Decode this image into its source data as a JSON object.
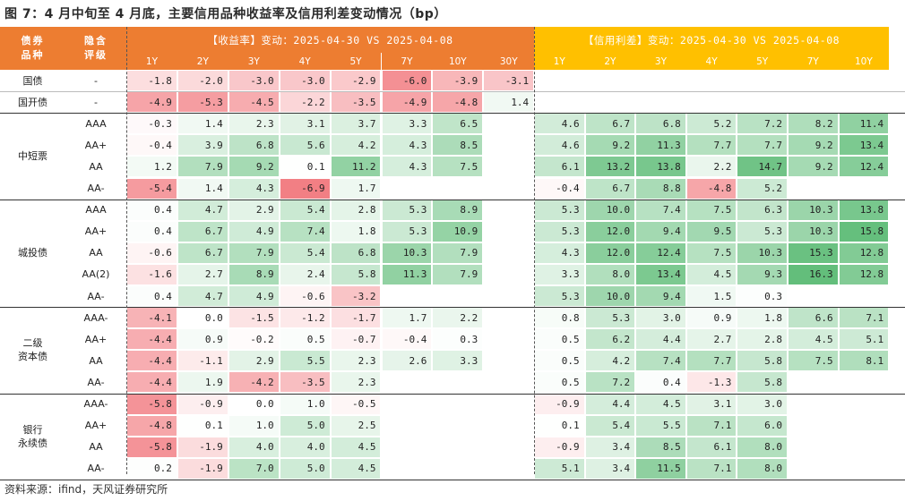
{
  "title": "图 7：4 月中旬至 4 月底，主要信用品种收益率及信用利差变动情况（bp）",
  "source": "资料来源：ifind，天风证券研究所",
  "colors": {
    "orange": "#ed7d31",
    "yellow": "#ffc000",
    "red_strong": "#f27f84",
    "green_strong": "#63be7b"
  },
  "header": {
    "col_bond": "债券\n品种",
    "col_rating": "隐含\n评级",
    "yield_title": "【收益率】变动：2025-04-30 VS 2025-04-08",
    "spread_title": "【信用利差】变动：2025-04-30 VS 2025-04-08",
    "yield_tenors": [
      "1Y",
      "2Y",
      "3Y",
      "4Y",
      "5Y",
      "7Y",
      "10Y",
      "30Y"
    ],
    "spread_tenors": [
      "1Y",
      "2Y",
      "3Y",
      "4Y",
      "5Y",
      "7Y",
      "10Y"
    ]
  },
  "chart_data": {
    "type": "table",
    "title": "图 7：4 月中旬至 4 月底，主要信用品种收益率及信用利差变动情况（bp）",
    "yield_columns": [
      "1Y",
      "2Y",
      "3Y",
      "4Y",
      "5Y",
      "7Y",
      "10Y",
      "30Y"
    ],
    "spread_columns": [
      "1Y",
      "2Y",
      "3Y",
      "4Y",
      "5Y",
      "7Y",
      "10Y"
    ],
    "groups": [
      {
        "name": "国债",
        "rows": [
          {
            "rating": "-",
            "yield": [
              "-1.8",
              "-2.0",
              "-3.0",
              "-3.0",
              "-2.9",
              "-6.0",
              "-3.9",
              "-3.1"
            ],
            "spread": [
              "",
              "",
              "",
              "",
              "",
              "",
              ""
            ]
          }
        ]
      },
      {
        "name": "国开债",
        "rows": [
          {
            "rating": "-",
            "yield": [
              "-4.9",
              "-5.3",
              "-4.5",
              "-2.2",
              "-3.5",
              "-4.9",
              "-4.8",
              "1.4"
            ],
            "spread": [
              "",
              "",
              "",
              "",
              "",
              "",
              ""
            ]
          }
        ]
      },
      {
        "name": "中短票",
        "rows": [
          {
            "rating": "AAA",
            "yield": [
              "-0.3",
              "1.4",
              "2.3",
              "3.1",
              "3.7",
              "3.3",
              "6.5",
              ""
            ],
            "spread": [
              "4.6",
              "6.7",
              "6.8",
              "5.2",
              "7.2",
              "8.2",
              "11.4"
            ]
          },
          {
            "rating": "AA+",
            "yield": [
              "-0.4",
              "3.9",
              "6.8",
              "5.6",
              "4.2",
              "4.3",
              "8.5",
              ""
            ],
            "spread": [
              "4.6",
              "9.2",
              "11.3",
              "7.7",
              "7.7",
              "9.2",
              "13.4"
            ]
          },
          {
            "rating": "AA",
            "yield": [
              "1.2",
              "7.9",
              "9.2",
              "0.1",
              "11.2",
              "4.3",
              "7.5",
              ""
            ],
            "spread": [
              "6.1",
              "13.2",
              "13.8",
              "2.2",
              "14.7",
              "9.2",
              "12.4"
            ]
          },
          {
            "rating": "AA-",
            "yield": [
              "-5.4",
              "1.4",
              "4.3",
              "-6.9",
              "1.7",
              "",
              "",
              ""
            ],
            "spread": [
              "-0.4",
              "6.7",
              "8.8",
              "-4.8",
              "5.2",
              "",
              ""
            ]
          }
        ]
      },
      {
        "name": "城投债",
        "rows": [
          {
            "rating": "AAA",
            "yield": [
              "0.4",
              "4.7",
              "2.9",
              "5.4",
              "2.8",
              "5.3",
              "8.9",
              ""
            ],
            "spread": [
              "5.3",
              "10.0",
              "7.4",
              "7.5",
              "6.3",
              "10.3",
              "13.8"
            ]
          },
          {
            "rating": "AA+",
            "yield": [
              "0.4",
              "6.7",
              "4.9",
              "7.4",
              "1.8",
              "5.3",
              "10.9",
              ""
            ],
            "spread": [
              "5.3",
              "12.0",
              "9.4",
              "9.5",
              "5.3",
              "10.3",
              "15.8"
            ]
          },
          {
            "rating": "AA",
            "yield": [
              "-0.6",
              "6.7",
              "7.9",
              "5.4",
              "6.8",
              "10.3",
              "7.9",
              ""
            ],
            "spread": [
              "4.3",
              "12.0",
              "12.4",
              "7.5",
              "10.3",
              "15.3",
              "12.8"
            ]
          },
          {
            "rating": "AA(2)",
            "yield": [
              "-1.6",
              "2.7",
              "8.9",
              "2.4",
              "5.8",
              "11.3",
              "7.9",
              ""
            ],
            "spread": [
              "3.3",
              "8.0",
              "13.4",
              "4.5",
              "9.3",
              "16.3",
              "12.8"
            ]
          },
          {
            "rating": "AA-",
            "yield": [
              "0.4",
              "4.7",
              "4.9",
              "-0.6",
              "-3.2",
              "",
              "",
              ""
            ],
            "spread": [
              "5.3",
              "10.0",
              "9.4",
              "1.5",
              "0.3",
              "",
              ""
            ]
          }
        ]
      },
      {
        "name": "二级\n资本债",
        "rows": [
          {
            "rating": "AAA-",
            "yield": [
              "-4.1",
              "0.0",
              "-1.5",
              "-1.2",
              "-1.7",
              "1.7",
              "2.2",
              ""
            ],
            "spread": [
              "0.8",
              "5.3",
              "3.0",
              "0.9",
              "1.8",
              "6.6",
              "7.1"
            ]
          },
          {
            "rating": "AA+",
            "yield": [
              "-4.4",
              "0.9",
              "-0.2",
              "0.5",
              "-0.7",
              "-0.4",
              "0.3",
              ""
            ],
            "spread": [
              "0.5",
              "6.2",
              "4.4",
              "2.7",
              "2.8",
              "4.5",
              "5.1"
            ]
          },
          {
            "rating": "AA",
            "yield": [
              "-4.4",
              "-1.1",
              "2.9",
              "5.5",
              "2.3",
              "2.6",
              "3.3",
              ""
            ],
            "spread": [
              "0.5",
              "4.2",
              "7.4",
              "7.7",
              "5.8",
              "7.5",
              "8.1"
            ]
          },
          {
            "rating": "AA-",
            "yield": [
              "-4.4",
              "1.9",
              "-4.2",
              "-3.5",
              "2.3",
              "",
              "",
              ""
            ],
            "spread": [
              "0.5",
              "7.2",
              "0.4",
              "-1.3",
              "5.8",
              "",
              ""
            ]
          }
        ]
      },
      {
        "name": "银行\n永续债",
        "rows": [
          {
            "rating": "AAA-",
            "yield": [
              "-5.8",
              "-0.9",
              "0.0",
              "1.0",
              "-0.5",
              "",
              "",
              ""
            ],
            "spread": [
              "-0.9",
              "4.4",
              "4.5",
              "3.1",
              "3.0",
              "",
              ""
            ]
          },
          {
            "rating": "AA+",
            "yield": [
              "-4.8",
              "0.1",
              "1.0",
              "5.0",
              "2.5",
              "",
              "",
              ""
            ],
            "spread": [
              "0.1",
              "5.4",
              "5.5",
              "7.1",
              "6.0",
              "",
              ""
            ]
          },
          {
            "rating": "AA",
            "yield": [
              "-5.8",
              "-1.9",
              "4.0",
              "4.0",
              "4.5",
              "",
              "",
              ""
            ],
            "spread": [
              "-0.9",
              "3.4",
              "8.5",
              "6.1",
              "8.0",
              "",
              ""
            ]
          },
          {
            "rating": "AA-",
            "yield": [
              "0.2",
              "-1.9",
              "7.0",
              "5.0",
              "4.5",
              "",
              "",
              ""
            ],
            "spread": [
              "5.1",
              "3.4",
              "11.5",
              "7.1",
              "8.0",
              "",
              ""
            ]
          }
        ]
      }
    ]
  }
}
